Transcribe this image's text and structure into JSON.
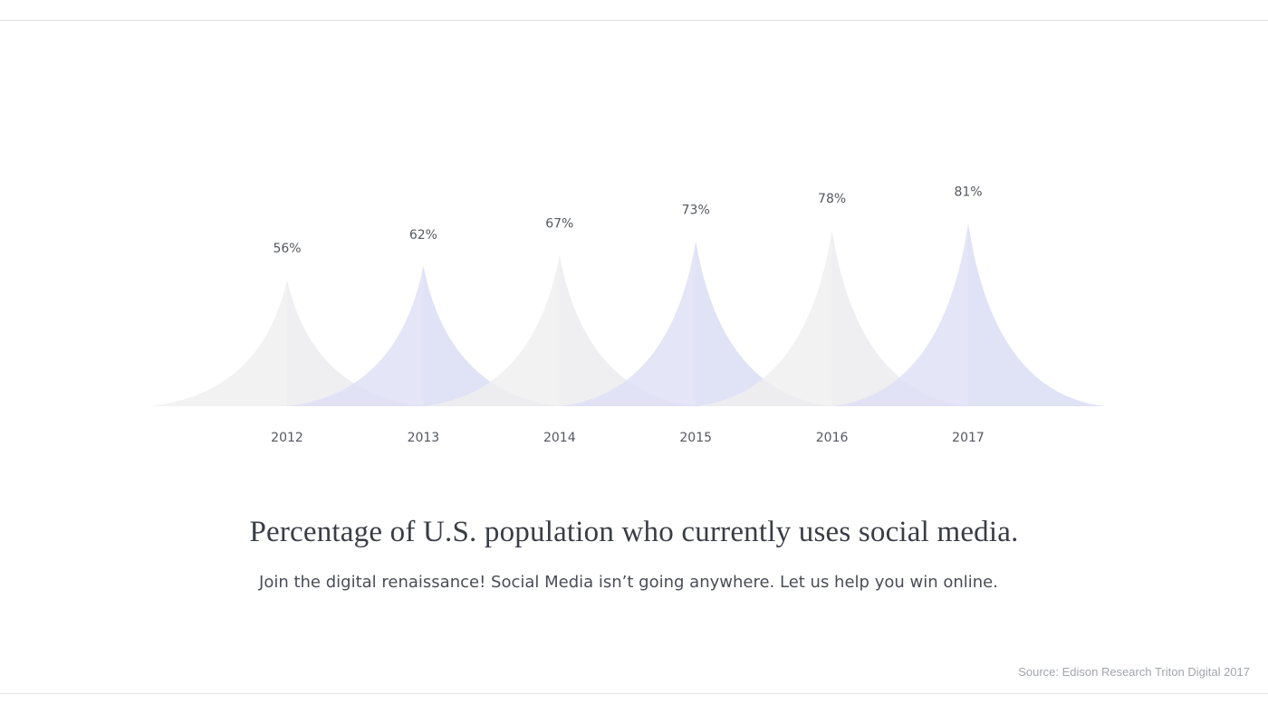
{
  "chart_data": {
    "type": "area",
    "title": "Percentage of U.S. population who currently uses social media.",
    "categories": [
      "2012",
      "2013",
      "2014",
      "2015",
      "2016",
      "2017"
    ],
    "values": [
      56,
      62,
      67,
      73,
      78,
      81
    ],
    "value_labels": [
      "56%",
      "62%",
      "67%",
      "73%",
      "78%",
      "81%"
    ],
    "ylim": [
      0,
      100
    ],
    "grid": false,
    "legend": "none",
    "colors": [
      "#efefef",
      "#dedff5"
    ]
  },
  "content": {
    "headline": "Percentage of U.S. population who currently uses social media.",
    "subline": "Join the digital renaissance! Social Media isn’t going anywhere. Let us help you win online.",
    "source": "Source: Edison Research Triton Digital 2017"
  }
}
